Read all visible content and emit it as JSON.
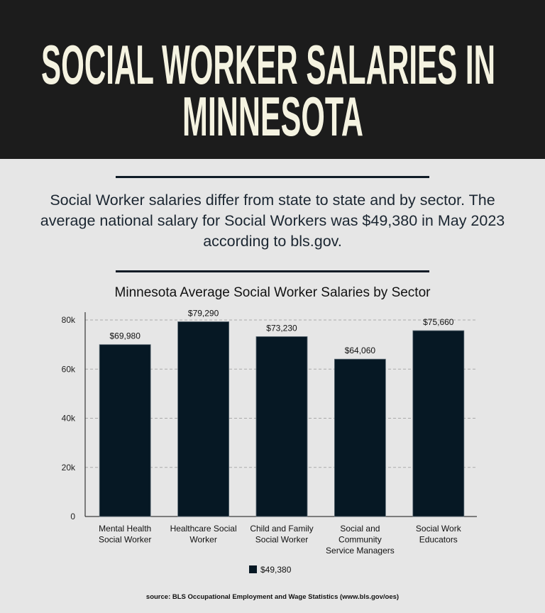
{
  "header": {
    "title_line1": "SOCIAL WORKER SALARIES IN",
    "title_line2": "MINNESOTA"
  },
  "intro": "Social Worker salaries differ from state to state and by sector. The average national salary for Social Workers was $49,380 in May 2023 according to bls.gov.",
  "colors": {
    "bar": "#061824",
    "header_bg": "#1c1c1c",
    "title": "#f5f3e1"
  },
  "chart_data": {
    "type": "bar",
    "title": "Minnesota Average Social Worker Salaries by Sector",
    "categories": [
      [
        "Mental Health",
        "Social Worker"
      ],
      [
        "Healthcare Social",
        "Worker"
      ],
      [
        "Child and Family",
        "Social Worker"
      ],
      [
        "Social and",
        "Community",
        "Service Managers"
      ],
      [
        "Social Work",
        "Educators"
      ]
    ],
    "series": [
      {
        "name": "$49,380",
        "values": [
          69980,
          79290,
          73230,
          64060,
          75660
        ]
      }
    ],
    "data_labels": [
      "$69,980",
      "$79,290",
      "$73,230",
      "$64,060",
      "$75,660"
    ],
    "yticks": [
      0,
      20000,
      40000,
      60000,
      80000
    ],
    "ytick_labels": [
      "0",
      "20k",
      "40k",
      "60k",
      "80k"
    ],
    "ylim": [
      0,
      80000
    ],
    "grid": true,
    "legend": "bottom-center",
    "xlabel": "",
    "ylabel": ""
  },
  "source": "source: BLS Occupational Employment and Wage Statistics (www.bls.gov/oes)"
}
